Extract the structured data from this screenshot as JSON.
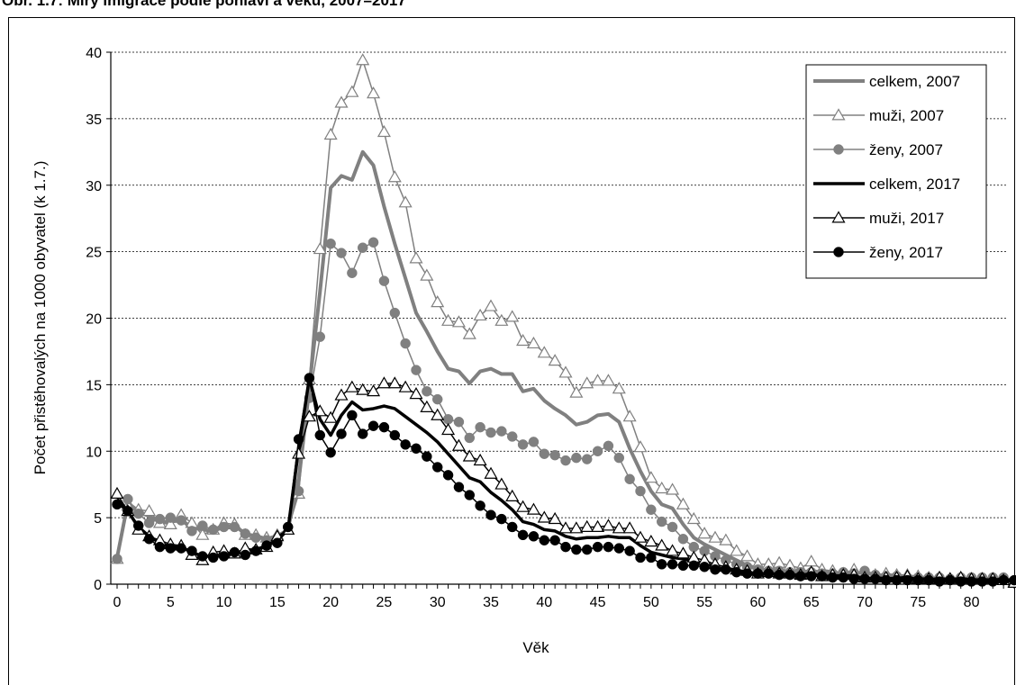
{
  "title": "Obr. 1.7: Míry imigrace podle pohlaví a věku, 2007–2017",
  "chart_data": {
    "type": "line",
    "title": "Obr. 1.7: Míry imigrace podle pohlaví a věku, 2007–2017",
    "xlabel": "Věk",
    "ylabel": "Počet přistěhovalých na 1000 obyvatel (k 1.7.)",
    "xlim": [
      0,
      84
    ],
    "ylim": [
      0,
      40
    ],
    "x_ticks": [
      0,
      5,
      10,
      15,
      20,
      25,
      30,
      35,
      40,
      45,
      50,
      55,
      60,
      65,
      70,
      75,
      80
    ],
    "y_ticks": [
      0,
      5,
      10,
      15,
      20,
      25,
      30,
      35,
      40
    ],
    "grid": "horizontal dashed",
    "legend_position": "top-right",
    "x": [
      0,
      1,
      2,
      3,
      4,
      5,
      6,
      7,
      8,
      9,
      10,
      11,
      12,
      13,
      14,
      15,
      16,
      17,
      18,
      19,
      20,
      21,
      22,
      23,
      24,
      25,
      26,
      27,
      28,
      29,
      30,
      31,
      32,
      33,
      34,
      35,
      36,
      37,
      38,
      39,
      40,
      41,
      42,
      43,
      44,
      45,
      46,
      47,
      48,
      49,
      50,
      51,
      52,
      53,
      54,
      55,
      56,
      57,
      58,
      59,
      60,
      61,
      62,
      63,
      64,
      65,
      66,
      67,
      68,
      69,
      70,
      71,
      72,
      73,
      74,
      75,
      76,
      77,
      78,
      79,
      80,
      81,
      82,
      83,
      84
    ],
    "series": [
      {
        "name": "celkem, 2007",
        "color": "#808080",
        "marker": "none",
        "width": 4,
        "values": [
          2.0,
          6.1,
          5.5,
          5.1,
          4.7,
          4.7,
          4.8,
          4.3,
          4.1,
          4.0,
          4.3,
          4.4,
          3.8,
          3.6,
          3.4,
          3.6,
          4.1,
          8.0,
          14.8,
          22.0,
          29.8,
          30.7,
          30.4,
          32.5,
          31.5,
          28.4,
          25.6,
          23.0,
          20.4,
          19.0,
          17.5,
          16.2,
          16.0,
          15.1,
          16.0,
          16.2,
          15.8,
          15.8,
          14.5,
          14.7,
          13.8,
          13.2,
          12.7,
          12.0,
          12.2,
          12.7,
          12.8,
          12.2,
          10.2,
          8.5,
          7.0,
          6.0,
          5.7,
          4.5,
          3.5,
          3.0,
          2.6,
          2.2,
          1.8,
          1.4,
          1.2,
          1.1,
          1.0,
          0.9,
          0.9,
          1.0,
          0.9,
          0.9,
          0.8,
          0.8,
          0.9,
          0.7,
          0.6,
          0.6,
          0.5,
          0.5,
          0.5,
          0.4,
          0.4,
          0.4,
          0.4,
          0.4,
          0.4,
          0.4,
          0.3
        ]
      },
      {
        "name": "muži, 2007",
        "color": "#808080",
        "marker": "triangle-open",
        "width": 1.5,
        "values": [
          1.9,
          5.9,
          5.6,
          5.5,
          4.6,
          4.5,
          5.2,
          4.6,
          3.7,
          4.1,
          4.6,
          4.5,
          3.7,
          3.7,
          3.5,
          3.7,
          4.1,
          6.8,
          15.4,
          25.2,
          33.8,
          36.2,
          37.0,
          39.4,
          36.9,
          34.0,
          30.6,
          28.7,
          24.5,
          23.2,
          21.2,
          19.8,
          19.7,
          18.8,
          20.2,
          20.9,
          19.8,
          20.1,
          18.3,
          18.1,
          17.4,
          16.8,
          15.9,
          14.4,
          15.1,
          15.3,
          15.3,
          14.7,
          12.6,
          10.3,
          8.0,
          7.2,
          7.1,
          6.0,
          4.9,
          3.8,
          3.5,
          3.3,
          2.5,
          2.1,
          1.5,
          1.5,
          1.6,
          1.4,
          1.2,
          1.7,
          1.1,
          1.0,
          0.8,
          1.1,
          0.7,
          0.7,
          0.8,
          0.7,
          0.7,
          0.6,
          0.5,
          0.5,
          0.4,
          0.4,
          0.4,
          0.4,
          0.4,
          0.4,
          0.2
        ]
      },
      {
        "name": "ženy, 2007",
        "color": "#808080",
        "marker": "circle-filled",
        "width": 1.5,
        "values": [
          1.9,
          6.4,
          5.3,
          4.6,
          4.9,
          5.0,
          4.8,
          4.0,
          4.4,
          4.1,
          4.3,
          4.3,
          3.8,
          3.5,
          3.3,
          3.5,
          4.3,
          7.0,
          14.0,
          18.6,
          25.6,
          24.9,
          23.4,
          25.3,
          25.7,
          22.8,
          20.4,
          18.1,
          16.1,
          14.5,
          13.9,
          12.4,
          12.2,
          11.0,
          11.8,
          11.4,
          11.5,
          11.1,
          10.5,
          10.7,
          9.8,
          9.7,
          9.3,
          9.5,
          9.4,
          10.0,
          10.4,
          9.5,
          7.9,
          7.0,
          5.6,
          4.7,
          4.3,
          3.4,
          2.8,
          2.5,
          2.1,
          1.8,
          1.5,
          1.3,
          1.1,
          1.0,
          1.0,
          0.9,
          0.9,
          0.9,
          0.8,
          0.8,
          0.9,
          0.8,
          1.0,
          0.7,
          0.6,
          0.6,
          0.5,
          0.5,
          0.5,
          0.5,
          0.4,
          0.5,
          0.5,
          0.5,
          0.5,
          0.5,
          0.2
        ]
      },
      {
        "name": "celkem, 2017",
        "color": "#000000",
        "marker": "none",
        "width": 3.5,
        "values": [
          6.4,
          5.5,
          4.3,
          3.6,
          3.1,
          2.8,
          2.8,
          2.4,
          2.1,
          2.1,
          2.2,
          2.3,
          2.5,
          2.6,
          2.9,
          3.3,
          4.1,
          10.2,
          15.5,
          12.4,
          11.2,
          12.7,
          13.7,
          13.1,
          13.2,
          13.4,
          13.2,
          12.6,
          12.0,
          11.4,
          10.7,
          9.8,
          8.9,
          8.0,
          7.7,
          6.9,
          6.3,
          5.6,
          4.7,
          4.5,
          4.1,
          4.0,
          3.6,
          3.4,
          3.5,
          3.5,
          3.6,
          3.5,
          3.5,
          2.9,
          2.4,
          2.2,
          2.0,
          1.9,
          1.7,
          1.6,
          1.3,
          1.1,
          1.0,
          0.9,
          0.8,
          0.8,
          0.7,
          0.7,
          0.7,
          0.7,
          0.6,
          0.6,
          0.6,
          0.5,
          0.4,
          0.5,
          0.4,
          0.4,
          0.4,
          0.4,
          0.4,
          0.3,
          0.4,
          0.3,
          0.3,
          0.3,
          0.3,
          0.4,
          0.2
        ]
      },
      {
        "name": "muži, 2017",
        "color": "#000000",
        "marker": "triangle-open",
        "width": 1.5,
        "values": [
          6.8,
          5.5,
          4.1,
          3.6,
          3.3,
          3.0,
          2.9,
          2.2,
          1.8,
          2.4,
          2.5,
          2.3,
          2.7,
          2.6,
          2.8,
          3.6,
          4.1,
          9.8,
          12.6,
          13.0,
          12.5,
          14.2,
          14.8,
          14.6,
          14.5,
          15.1,
          15.1,
          14.8,
          14.3,
          13.3,
          12.7,
          11.6,
          10.4,
          9.6,
          9.3,
          8.3,
          7.5,
          6.6,
          5.8,
          5.6,
          5.0,
          4.9,
          4.2,
          4.2,
          4.3,
          4.3,
          4.4,
          4.2,
          4.2,
          3.5,
          3.2,
          2.9,
          2.5,
          2.3,
          2.0,
          1.8,
          1.5,
          1.3,
          1.1,
          1.0,
          0.8,
          0.9,
          0.8,
          0.8,
          0.7,
          0.9,
          0.6,
          0.7,
          0.7,
          0.7,
          0.5,
          0.5,
          0.5,
          0.5,
          0.6,
          0.4,
          0.4,
          0.5,
          0.4,
          0.5,
          0.4,
          0.4,
          0.4,
          0.3,
          0.1
        ]
      },
      {
        "name": "ženy, 2017",
        "color": "#000000",
        "marker": "circle-filled",
        "width": 1.5,
        "values": [
          6.0,
          5.5,
          4.4,
          3.4,
          2.8,
          2.7,
          2.7,
          2.5,
          2.1,
          2.0,
          2.1,
          2.4,
          2.2,
          2.5,
          2.9,
          3.1,
          4.3,
          10.9,
          15.5,
          11.2,
          9.9,
          11.3,
          12.7,
          11.3,
          11.9,
          11.8,
          11.2,
          10.5,
          10.2,
          9.6,
          8.8,
          8.2,
          7.3,
          6.7,
          5.9,
          5.2,
          4.9,
          4.3,
          3.7,
          3.6,
          3.3,
          3.3,
          2.8,
          2.6,
          2.6,
          2.8,
          2.8,
          2.7,
          2.5,
          2.0,
          2.0,
          1.5,
          1.5,
          1.4,
          1.4,
          1.3,
          1.1,
          1.1,
          0.9,
          0.8,
          0.8,
          0.8,
          0.7,
          0.7,
          0.6,
          0.6,
          0.6,
          0.5,
          0.5,
          0.4,
          0.4,
          0.4,
          0.3,
          0.3,
          0.3,
          0.3,
          0.3,
          0.2,
          0.3,
          0.2,
          0.2,
          0.2,
          0.2,
          0.3,
          0.3
        ]
      }
    ]
  }
}
